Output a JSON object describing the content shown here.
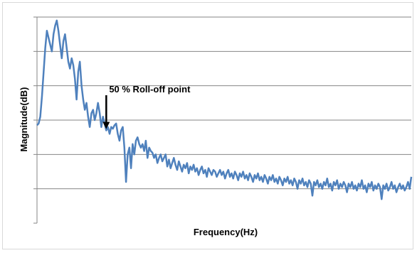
{
  "chart_data": {
    "type": "line",
    "title": "",
    "xlabel": "Frequency(Hz)",
    "ylabel": "Magnitude(dB)",
    "x_ticks_labeled": false,
    "y_ticks_labeled": false,
    "grid": "horizontal",
    "legend": "none",
    "ylim": [
      0,
      6
    ],
    "annotation": {
      "text": "50 % Roll-off point",
      "target_index": 42
    },
    "series": [
      {
        "color": "#4f81bd",
        "values": [
          2.85,
          2.9,
          3.1,
          3.7,
          4.4,
          5.1,
          5.6,
          5.4,
          5.2,
          5.0,
          5.5,
          5.75,
          5.9,
          5.6,
          5.2,
          4.8,
          5.3,
          5.5,
          5.1,
          4.7,
          4.5,
          4.8,
          4.6,
          4.2,
          3.6,
          4.4,
          4.7,
          4.0,
          3.6,
          3.3,
          3.5,
          3.1,
          2.8,
          3.2,
          3.3,
          3.0,
          3.2,
          3.5,
          3.2,
          2.8,
          3.1,
          2.9,
          2.7,
          2.8,
          2.6,
          2.8,
          2.75,
          2.85,
          2.9,
          2.6,
          2.4,
          2.7,
          2.8,
          2.2,
          1.2,
          2.0,
          2.2,
          1.6,
          2.3,
          2.0,
          2.4,
          2.5,
          2.3,
          2.2,
          2.3,
          2.1,
          2.4,
          1.9,
          2.2,
          2.1,
          2.05,
          1.9,
          2.0,
          1.75,
          1.9,
          2.0,
          1.8,
          1.9,
          2.0,
          1.65,
          1.85,
          1.6,
          1.75,
          1.9,
          1.7,
          1.55,
          1.8,
          1.65,
          1.5,
          1.7,
          1.6,
          1.75,
          1.45,
          1.65,
          1.55,
          1.7,
          1.5,
          1.6,
          1.4,
          1.55,
          1.65,
          1.45,
          1.55,
          1.35,
          1.6,
          1.5,
          1.4,
          1.55,
          1.5,
          1.35,
          1.45,
          1.55,
          1.4,
          1.5,
          1.3,
          1.45,
          1.55,
          1.35,
          1.45,
          1.3,
          1.5,
          1.4,
          1.25,
          1.45,
          1.35,
          1.5,
          1.3,
          1.4,
          1.25,
          1.45,
          1.35,
          1.2,
          1.4,
          1.3,
          1.45,
          1.25,
          1.35,
          1.2,
          1.4,
          1.3,
          1.15,
          1.35,
          1.25,
          1.4,
          1.2,
          1.3,
          1.15,
          1.35,
          1.25,
          1.1,
          1.3,
          1.2,
          1.35,
          1.15,
          1.25,
          1.1,
          1.3,
          1.2,
          1.0,
          1.25,
          1.15,
          1.3,
          1.1,
          1.2,
          1.05,
          1.25,
          1.15,
          0.8,
          1.2,
          1.1,
          1.25,
          1.05,
          1.15,
          1.0,
          1.2,
          1.1,
          1.3,
          1.05,
          1.15,
          0.95,
          1.2,
          1.1,
          1.25,
          1.0,
          1.15,
          1.05,
          1.2,
          1.1,
          0.9,
          1.15,
          1.05,
          1.2,
          1.0,
          1.1,
          0.95,
          1.15,
          1.05,
          1.25,
          1.0,
          1.1,
          0.9,
          1.15,
          1.05,
          1.2,
          0.95,
          1.1,
          1.0,
          1.15,
          1.05,
          0.7,
          1.1,
          1.0,
          1.15,
          0.95,
          1.05,
          1.2,
          1.0,
          1.1,
          0.9,
          1.05,
          1.15,
          1.0,
          1.1,
          0.95,
          1.05,
          1.2,
          1.0,
          1.35
        ]
      }
    ]
  }
}
